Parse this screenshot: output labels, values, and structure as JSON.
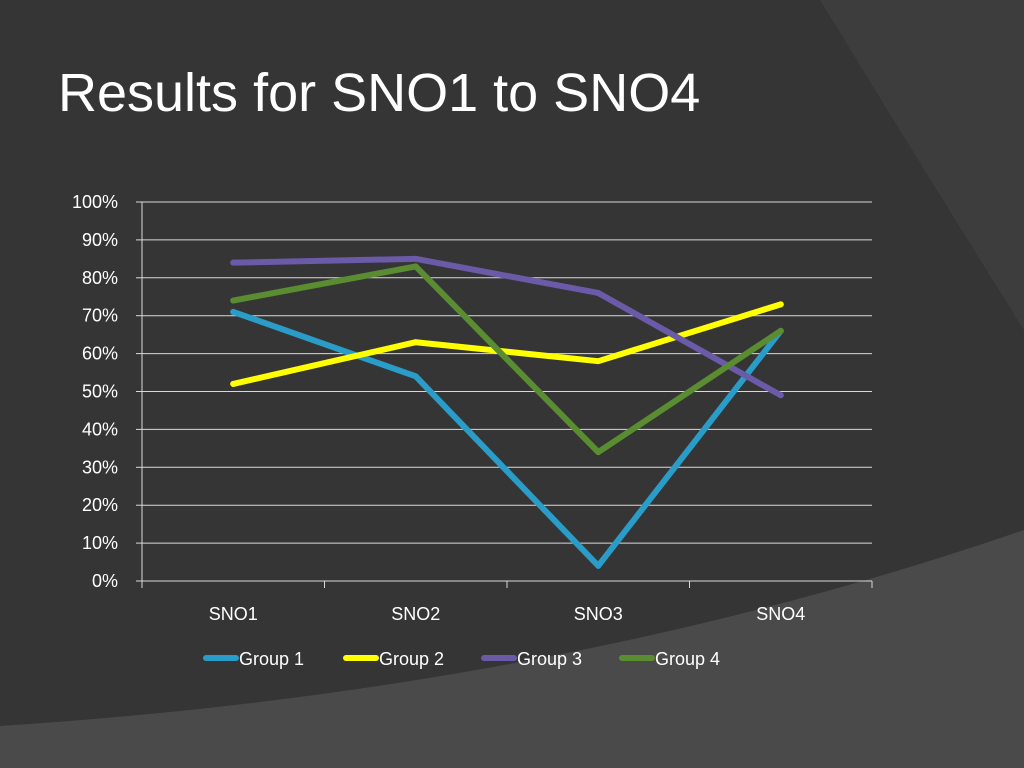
{
  "slide": {
    "title": "Results for SNO1 to SNO4"
  },
  "chart_data": {
    "type": "line",
    "title": "",
    "xlabel": "",
    "ylabel": "",
    "categories": [
      "SNO1",
      "SNO2",
      "SNO3",
      "SNO4"
    ],
    "ylim": [
      0,
      100
    ],
    "y_ticks": [
      0,
      10,
      20,
      30,
      40,
      50,
      60,
      70,
      80,
      90,
      100
    ],
    "y_tick_labels": [
      "0%",
      "10%",
      "20%",
      "30%",
      "40%",
      "50%",
      "60%",
      "70%",
      "80%",
      "90%",
      "100%"
    ],
    "grid": true,
    "legend_position": "bottom",
    "series": [
      {
        "name": "Group 1",
        "color": "#2a9cc8",
        "values": [
          71,
          54,
          4,
          66
        ]
      },
      {
        "name": "Group 2",
        "color": "#ffff00",
        "values": [
          52,
          63,
          58,
          73
        ]
      },
      {
        "name": "Group 3",
        "color": "#6a5aa8",
        "values": [
          84,
          85,
          76,
          49
        ]
      },
      {
        "name": "Group 4",
        "color": "#5a8c32",
        "values": [
          74,
          83,
          34,
          66
        ]
      }
    ]
  },
  "colors": {
    "background": "#353535",
    "text": "#ffffff",
    "gridline": "#d9d9d9"
  }
}
